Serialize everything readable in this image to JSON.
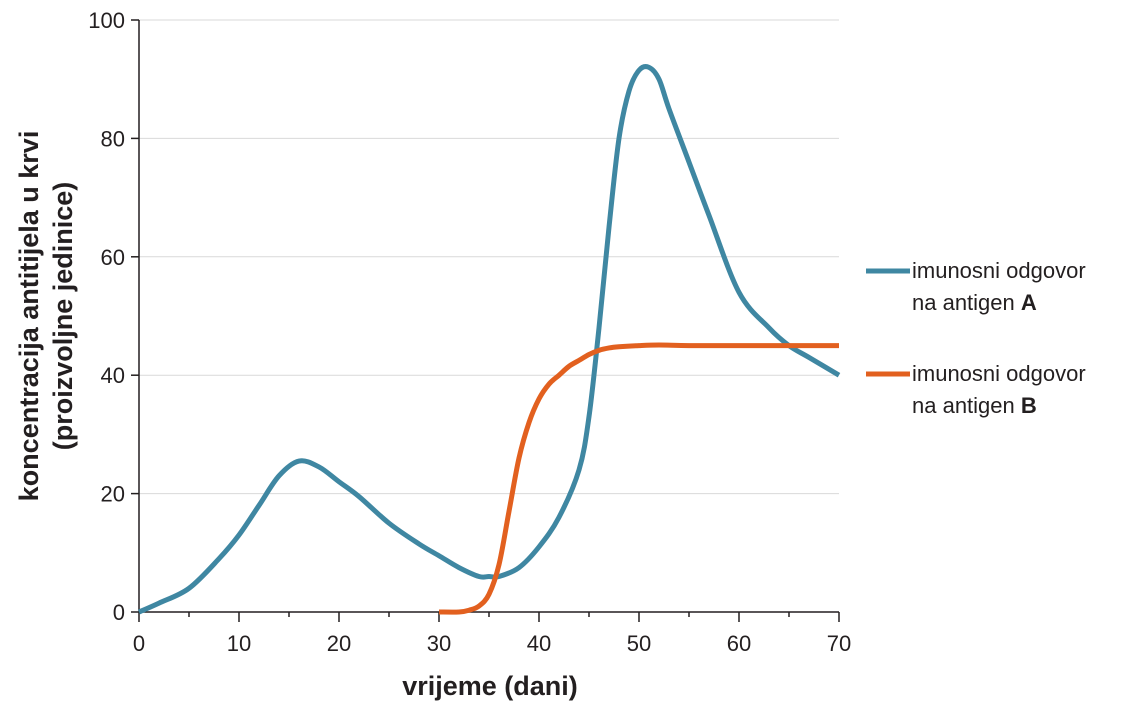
{
  "chart_data": {
    "type": "line",
    "xlabel": "vrijeme (dani)",
    "ylabel": {
      "line1": "koncentracija antitijela u krvi",
      "line2": "(proizvoljne jedinice)"
    },
    "xlim": [
      0,
      70
    ],
    "ylim": [
      0,
      100
    ],
    "xticks": [
      "0",
      "10",
      "20",
      "30",
      "40",
      "50",
      "60",
      "70"
    ],
    "yticks": [
      "0",
      "20",
      "40",
      "60",
      "80",
      "100"
    ],
    "grid": "horizontal",
    "series": [
      {
        "name": "imunosni odgovor na antigen A",
        "color": "#3f87a2",
        "x": [
          0,
          2,
          5,
          8,
          10,
          12,
          14,
          16,
          18,
          20,
          22,
          25,
          28,
          30,
          32,
          34,
          35,
          36,
          38,
          40,
          42,
          44,
          45,
          46,
          47,
          48,
          49,
          50,
          51,
          52,
          53,
          55,
          57,
          60,
          63,
          65,
          67,
          70
        ],
        "y": [
          0,
          1.5,
          4,
          9,
          13,
          18,
          23,
          25.5,
          24.5,
          22,
          19.5,
          15,
          11.5,
          9.5,
          7.5,
          6,
          6,
          6,
          7.5,
          11,
          16,
          24,
          33,
          48,
          65,
          80,
          88,
          91.5,
          92,
          90,
          85,
          76,
          67,
          54,
          48,
          45,
          43,
          40
        ]
      },
      {
        "name": "imunosni odgovor na antigen B",
        "color": "#e2601f",
        "x": [
          30,
          32,
          33,
          34,
          35,
          36,
          37,
          38,
          39,
          40,
          41,
          42,
          43,
          44,
          45,
          46,
          47,
          48,
          50,
          52,
          55,
          60,
          65,
          70
        ],
        "y": [
          0,
          0,
          0.3,
          1,
          3,
          8,
          17,
          26,
          32,
          36,
          38.5,
          40,
          41.5,
          42.5,
          43.5,
          44.2,
          44.6,
          44.8,
          45,
          45.1,
          45,
          45,
          45,
          45
        ]
      }
    ]
  },
  "legend": [
    {
      "line1": "imunosni odgovor",
      "line2_prefix": "na antigen ",
      "line2_bold": "A"
    },
    {
      "line1": "imunosni odgovor",
      "line2_prefix": "na antigen ",
      "line2_bold": "B"
    }
  ]
}
